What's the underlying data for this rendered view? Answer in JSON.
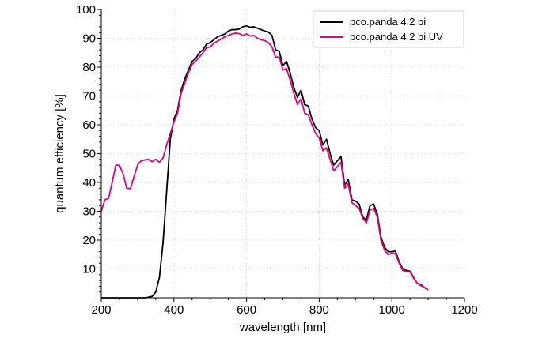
{
  "chart_data": {
    "type": "line",
    "title": "",
    "xlabel": "wavelength [nm]",
    "ylabel": "quantum efficiency [%]",
    "xlim": [
      200,
      1200
    ],
    "ylim": [
      0,
      100
    ],
    "xticks": [
      200,
      400,
      600,
      800,
      1000,
      1200
    ],
    "yticks": [
      10,
      20,
      30,
      40,
      50,
      60,
      70,
      80,
      90,
      100
    ],
    "grid": true,
    "legend_position": "top-right",
    "series": [
      {
        "name": "pco.panda 4.2 bi",
        "color": "#000000",
        "points": [
          [
            200,
            0
          ],
          [
            320,
            0
          ],
          [
            330,
            0.2
          ],
          [
            340,
            0.5
          ],
          [
            350,
            2
          ],
          [
            360,
            7
          ],
          [
            370,
            19
          ],
          [
            380,
            37
          ],
          [
            390,
            55
          ],
          [
            400,
            62
          ],
          [
            410,
            65
          ],
          [
            420,
            72
          ],
          [
            430,
            76
          ],
          [
            440,
            79
          ],
          [
            450,
            82
          ],
          [
            460,
            83
          ],
          [
            470,
            85
          ],
          [
            480,
            86
          ],
          [
            490,
            88
          ],
          [
            500,
            88.5
          ],
          [
            510,
            89.5
          ],
          [
            520,
            90.5
          ],
          [
            530,
            91
          ],
          [
            540,
            91.5
          ],
          [
            550,
            92.5
          ],
          [
            560,
            93
          ],
          [
            570,
            93
          ],
          [
            580,
            93.2
          ],
          [
            590,
            94
          ],
          [
            600,
            94.3
          ],
          [
            610,
            93.8
          ],
          [
            620,
            94
          ],
          [
            630,
            93.5
          ],
          [
            640,
            93
          ],
          [
            650,
            92.5
          ],
          [
            660,
            92.2
          ],
          [
            670,
            91
          ],
          [
            680,
            86
          ],
          [
            690,
            85.5
          ],
          [
            700,
            80.5
          ],
          [
            710,
            82
          ],
          [
            720,
            78
          ],
          [
            730,
            73
          ],
          [
            740,
            69.5
          ],
          [
            750,
            72
          ],
          [
            760,
            67
          ],
          [
            770,
            66.5
          ],
          [
            780,
            62
          ],
          [
            790,
            59
          ],
          [
            800,
            58
          ],
          [
            810,
            53
          ],
          [
            820,
            55
          ],
          [
            830,
            50
          ],
          [
            840,
            46
          ],
          [
            850,
            47.5
          ],
          [
            860,
            49
          ],
          [
            870,
            39
          ],
          [
            880,
            41
          ],
          [
            890,
            34
          ],
          [
            900,
            33.5
          ],
          [
            910,
            32.5
          ],
          [
            920,
            28
          ],
          [
            930,
            27
          ],
          [
            940,
            32
          ],
          [
            950,
            32.5
          ],
          [
            960,
            29
          ],
          [
            970,
            21
          ],
          [
            980,
            17.5
          ],
          [
            990,
            16
          ],
          [
            1000,
            16
          ],
          [
            1010,
            16.2
          ],
          [
            1020,
            12.5
          ],
          [
            1030,
            10
          ],
          [
            1040,
            9.5
          ],
          [
            1050,
            9.2
          ],
          [
            1060,
            7
          ],
          [
            1070,
            5
          ],
          [
            1080,
            4.5
          ],
          [
            1090,
            3.5
          ],
          [
            1100,
            2.8
          ]
        ]
      },
      {
        "name": "pco.panda 4.2 bi UV",
        "color": "#e6007e",
        "points": [
          [
            200,
            30
          ],
          [
            210,
            34
          ],
          [
            220,
            34.5
          ],
          [
            230,
            40
          ],
          [
            240,
            46
          ],
          [
            250,
            46
          ],
          [
            260,
            43
          ],
          [
            270,
            38
          ],
          [
            280,
            37.8
          ],
          [
            290,
            42
          ],
          [
            300,
            46
          ],
          [
            310,
            47.5
          ],
          [
            320,
            47.8
          ],
          [
            330,
            48
          ],
          [
            340,
            47.2
          ],
          [
            350,
            48
          ],
          [
            360,
            47
          ],
          [
            370,
            48.5
          ],
          [
            380,
            53
          ],
          [
            390,
            57
          ],
          [
            400,
            61
          ],
          [
            410,
            64
          ],
          [
            420,
            71
          ],
          [
            430,
            74.5
          ],
          [
            440,
            78
          ],
          [
            450,
            81
          ],
          [
            460,
            82
          ],
          [
            470,
            83.5
          ],
          [
            480,
            85
          ],
          [
            490,
            86.8
          ],
          [
            500,
            87
          ],
          [
            510,
            88.3
          ],
          [
            520,
            89
          ],
          [
            530,
            89.7
          ],
          [
            540,
            90.5
          ],
          [
            550,
            91
          ],
          [
            560,
            91.5
          ],
          [
            570,
            91.8
          ],
          [
            580,
            91.6
          ],
          [
            590,
            91
          ],
          [
            600,
            91.5
          ],
          [
            610,
            90.8
          ],
          [
            620,
            91
          ],
          [
            630,
            90
          ],
          [
            640,
            89.5
          ],
          [
            650,
            89.2
          ],
          [
            660,
            88.5
          ],
          [
            670,
            87
          ],
          [
            680,
            83.5
          ],
          [
            690,
            83.5
          ],
          [
            700,
            79
          ],
          [
            710,
            79.5
          ],
          [
            720,
            75.5
          ],
          [
            730,
            71
          ],
          [
            740,
            67
          ],
          [
            750,
            69
          ],
          [
            760,
            64
          ],
          [
            770,
            63.5
          ],
          [
            780,
            60
          ],
          [
            790,
            57
          ],
          [
            800,
            55.5
          ],
          [
            810,
            51
          ],
          [
            820,
            52
          ],
          [
            830,
            48
          ],
          [
            840,
            44
          ],
          [
            850,
            45.5
          ],
          [
            860,
            47
          ],
          [
            870,
            38
          ],
          [
            880,
            39.5
          ],
          [
            890,
            33
          ],
          [
            900,
            32
          ],
          [
            910,
            31
          ],
          [
            920,
            27.5
          ],
          [
            930,
            26
          ],
          [
            940,
            30.5
          ],
          [
            950,
            31
          ],
          [
            960,
            28
          ],
          [
            970,
            20
          ],
          [
            980,
            16.5
          ],
          [
            990,
            15
          ],
          [
            1000,
            15.5
          ],
          [
            1010,
            15.3
          ],
          [
            1020,
            12
          ],
          [
            1030,
            9.5
          ],
          [
            1040,
            9
          ],
          [
            1050,
            9
          ],
          [
            1060,
            6.8
          ],
          [
            1070,
            5
          ],
          [
            1080,
            4.2
          ],
          [
            1090,
            3.6
          ],
          [
            1100,
            2.8
          ]
        ]
      }
    ]
  }
}
